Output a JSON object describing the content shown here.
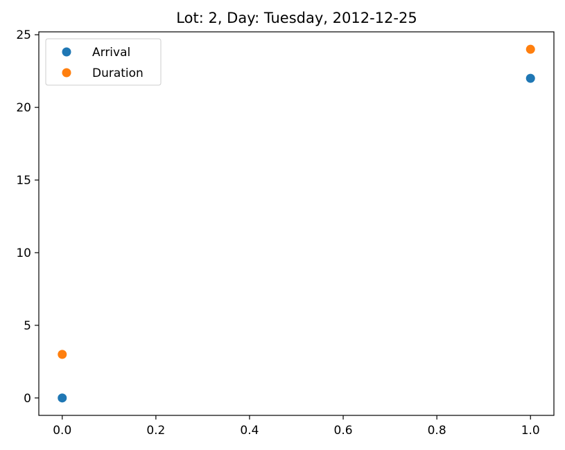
{
  "chart_data": {
    "type": "scatter",
    "title": "Lot: 2, Day: Tuesday, 2012-12-25",
    "xlabel": "",
    "ylabel": "",
    "xlim": [
      -0.05,
      1.05
    ],
    "ylim": [
      -1.2,
      25.2
    ],
    "x_ticks": [
      "0.0",
      "0.2",
      "0.4",
      "0.6",
      "0.8",
      "1.0"
    ],
    "x_tick_values": [
      0,
      0.2,
      0.4,
      0.6,
      0.8,
      1.0
    ],
    "y_ticks": [
      "0",
      "5",
      "10",
      "15",
      "20",
      "25"
    ],
    "y_tick_values": [
      0,
      5,
      10,
      15,
      20,
      25
    ],
    "grid": false,
    "legend_position": "top-left",
    "series": [
      {
        "name": "Arrival",
        "color": "#1f77b4",
        "points": [
          {
            "x": 0,
            "y": 0
          },
          {
            "x": 1,
            "y": 22
          }
        ]
      },
      {
        "name": "Duration",
        "color": "#ff7f0e",
        "points": [
          {
            "x": 0,
            "y": 3
          },
          {
            "x": 1,
            "y": 24
          }
        ]
      }
    ]
  }
}
